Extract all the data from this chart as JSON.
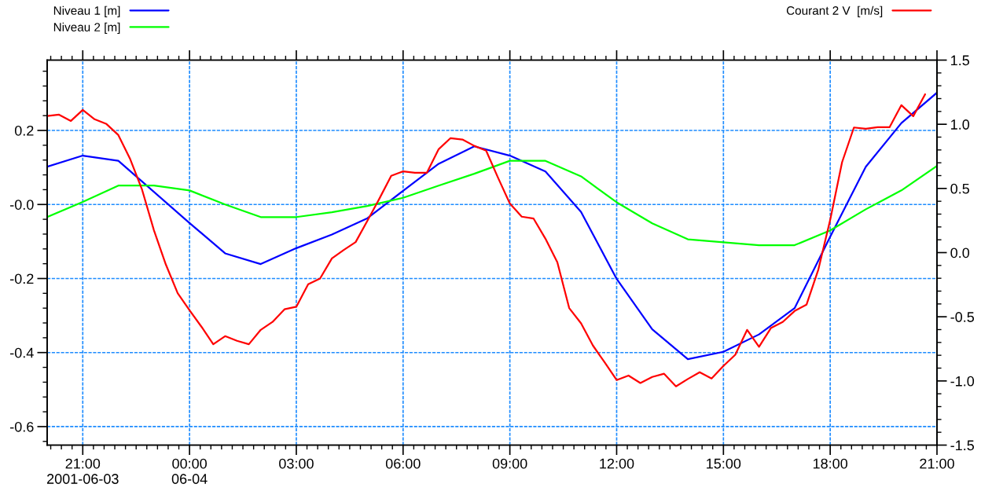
{
  "chart_data": {
    "type": "line",
    "xlim": [
      "2001-06-03T20:00",
      "2001-06-04T21:00"
    ],
    "xticks": [
      {
        "value": "2001-06-03T21:00",
        "label": "21:00\n2001-06-03"
      },
      {
        "value": "2001-06-04T00:00",
        "label": "00:00\n06-04"
      },
      {
        "value": "2001-06-04T03:00",
        "label": "03:00"
      },
      {
        "value": "2001-06-04T06:00",
        "label": "06:00"
      },
      {
        "value": "2001-06-04T09:00",
        "label": "09:00"
      },
      {
        "value": "2001-06-04T12:00",
        "label": "12:00"
      },
      {
        "value": "2001-06-04T15:00",
        "label": "15:00"
      },
      {
        "value": "2001-06-04T18:00",
        "label": "18:00"
      },
      {
        "value": "2001-06-04T21:00",
        "label": "21:00"
      }
    ],
    "ylim": [
      -0.65,
      0.39
    ],
    "yticks": [
      -0.6,
      -0.4,
      -0.2,
      {
        "value": 0,
        "label": "-0.0"
      },
      0.2
    ],
    "y2lim": [
      -1.5,
      1.5
    ],
    "y2ticks": [
      -1.5,
      {
        "value": -1,
        "label": "-1.0"
      },
      -0.5,
      {
        "value": 0,
        "label": "0.0"
      },
      0.5,
      {
        "value": 1,
        "label": "1.0"
      },
      1.5
    ],
    "grid": true,
    "legend": "top",
    "series": [
      {
        "name": "Niveau 1 [m]",
        "color": "#0000ff",
        "axis": "y",
        "x": [
          "2001-06-03T20:00",
          "2001-06-03T21:00",
          "2001-06-03T22:00",
          "2001-06-04T00:00",
          "2001-06-04T01:00",
          "2001-06-04T02:00",
          "2001-06-04T03:00",
          "2001-06-04T04:00",
          "2001-06-04T05:00",
          "2001-06-04T06:00",
          "2001-06-04T07:00",
          "2001-06-04T08:00",
          "2001-06-04T09:00",
          "2001-06-04T10:00",
          "2001-06-04T11:00",
          "2001-06-04T12:00",
          "2001-06-04T13:00",
          "2001-06-04T14:00",
          "2001-06-04T15:00",
          "2001-06-04T16:00",
          "2001-06-04T17:00",
          "2001-06-04T18:00",
          "2001-06-04T19:00",
          "2001-06-04T20:00",
          "2001-06-04T21:00"
        ],
        "values": [
          0.102,
          0.132,
          0.118,
          -0.05,
          -0.132,
          -0.161,
          -0.118,
          -0.081,
          -0.037,
          0.037,
          0.11,
          0.157,
          0.132,
          0.089,
          -0.02,
          -0.201,
          -0.337,
          -0.418,
          -0.398,
          -0.351,
          -0.28,
          -0.087,
          0.102,
          0.22,
          0.302
        ]
      },
      {
        "name": "Niveau 2 [m]",
        "color": "#00ff00",
        "axis": "y",
        "x": [
          "2001-06-03T20:00",
          "2001-06-03T21:00",
          "2001-06-03T22:00",
          "2001-06-03T23:00",
          "2001-06-04T00:00",
          "2001-06-04T01:00",
          "2001-06-04T02:00",
          "2001-06-04T03:00",
          "2001-06-04T04:00",
          "2001-06-04T05:00",
          "2001-06-04T06:00",
          "2001-06-04T07:00",
          "2001-06-04T08:00",
          "2001-06-04T09:00",
          "2001-06-04T10:00",
          "2001-06-04T11:00",
          "2001-06-04T12:00",
          "2001-06-04T13:00",
          "2001-06-04T14:00",
          "2001-06-04T15:00",
          "2001-06-04T16:00",
          "2001-06-04T17:00",
          "2001-06-04T18:00",
          "2001-06-04T19:00",
          "2001-06-04T20:00",
          "2001-06-04T21:00"
        ],
        "values": [
          -0.034,
          0.007,
          0.051,
          0.051,
          0.038,
          0.0,
          -0.034,
          -0.034,
          -0.021,
          -0.004,
          0.018,
          0.051,
          0.083,
          0.118,
          0.118,
          0.076,
          0.006,
          -0.051,
          -0.094,
          -0.102,
          -0.11,
          -0.11,
          -0.07,
          -0.013,
          0.038,
          0.104
        ]
      },
      {
        "name": "Courant 2 V  [m/s]",
        "color": "#ff0000",
        "axis": "y2",
        "x": [
          "2001-06-03T20:00",
          "2001-06-03T20:20",
          "2001-06-03T20:40",
          "2001-06-03T21:00",
          "2001-06-03T21:20",
          "2001-06-03T21:40",
          "2001-06-03T22:00",
          "2001-06-03T22:20",
          "2001-06-03T22:40",
          "2001-06-03T23:00",
          "2001-06-03T23:20",
          "2001-06-03T23:40",
          "2001-06-04T00:00",
          "2001-06-04T00:20",
          "2001-06-04T00:40",
          "2001-06-04T01:00",
          "2001-06-04T01:20",
          "2001-06-04T01:40",
          "2001-06-04T02:00",
          "2001-06-04T02:20",
          "2001-06-04T02:40",
          "2001-06-04T03:00",
          "2001-06-04T03:20",
          "2001-06-04T03:40",
          "2001-06-04T04:00",
          "2001-06-04T04:20",
          "2001-06-04T04:40",
          "2001-06-04T05:00",
          "2001-06-04T05:20",
          "2001-06-04T05:40",
          "2001-06-04T06:00",
          "2001-06-04T06:20",
          "2001-06-04T06:40",
          "2001-06-04T07:00",
          "2001-06-04T07:20",
          "2001-06-04T07:40",
          "2001-06-04T08:00",
          "2001-06-04T08:20",
          "2001-06-04T08:40",
          "2001-06-04T09:00",
          "2001-06-04T09:20",
          "2001-06-04T09:40",
          "2001-06-04T10:00",
          "2001-06-04T10:20",
          "2001-06-04T10:40",
          "2001-06-04T11:00",
          "2001-06-04T11:20",
          "2001-06-04T11:40",
          "2001-06-04T12:00",
          "2001-06-04T12:20",
          "2001-06-04T12:40",
          "2001-06-04T13:00",
          "2001-06-04T13:20",
          "2001-06-04T13:40",
          "2001-06-04T14:00",
          "2001-06-04T14:20",
          "2001-06-04T14:40",
          "2001-06-04T15:00",
          "2001-06-04T15:20",
          "2001-06-04T15:40",
          "2001-06-04T16:00",
          "2001-06-04T16:20",
          "2001-06-04T16:40",
          "2001-06-04T17:00",
          "2001-06-04T17:20",
          "2001-06-04T17:40",
          "2001-06-04T18:00",
          "2001-06-04T18:20",
          "2001-06-04T18:40",
          "2001-06-04T19:00",
          "2001-06-04T19:20",
          "2001-06-04T19:40",
          "2001-06-04T20:00",
          "2001-06-04T20:20",
          "2001-06-04T20:40"
        ],
        "values": [
          1.065,
          1.075,
          1.026,
          1.112,
          1.039,
          1.002,
          0.916,
          0.728,
          0.49,
          0.174,
          -0.092,
          -0.316,
          -0.449,
          -0.577,
          -0.714,
          -0.651,
          -0.687,
          -0.714,
          -0.602,
          -0.54,
          -0.442,
          -0.422,
          -0.247,
          -0.202,
          -0.045,
          0.021,
          0.082,
          0.25,
          0.42,
          0.598,
          0.633,
          0.622,
          0.622,
          0.806,
          0.892,
          0.881,
          0.832,
          0.794,
          0.584,
          0.382,
          0.28,
          0.265,
          0.108,
          -0.075,
          -0.432,
          -0.551,
          -0.724,
          -0.857,
          -0.993,
          -0.958,
          -1.016,
          -0.969,
          -0.944,
          -1.042,
          -0.985,
          -0.932,
          -0.981,
          -0.883,
          -0.796,
          -0.602,
          -0.734,
          -0.588,
          -0.54,
          -0.455,
          -0.406,
          -0.132,
          0.255,
          0.704,
          0.975,
          0.965,
          0.977,
          0.977,
          1.149,
          1.063,
          1.234
        ]
      }
    ]
  }
}
